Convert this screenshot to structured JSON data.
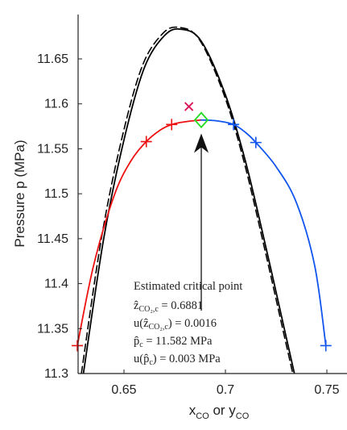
{
  "chart_data": {
    "type": "line",
    "title": "",
    "xlabel": {
      "main1": "x",
      "sub1": "CO",
      "mid": " or y",
      "sub2": "CO"
    },
    "ylabel": "Pressure p (MPa)",
    "xlim": [
      0.625,
      0.755
    ],
    "ylim": [
      11.3,
      11.69
    ],
    "x_ticks": [
      0.65,
      0.7,
      0.75
    ],
    "x_tick_labels": [
      "0.65",
      "0.7",
      "0.75"
    ],
    "y_ticks": [
      11.3,
      11.35,
      11.4,
      11.45,
      11.5,
      11.55,
      11.6,
      11.65
    ],
    "y_tick_labels": [
      "11.3",
      "11.35",
      "11.4",
      "11.45",
      "11.5",
      "11.55",
      "11.6",
      "11.65"
    ],
    "grid": false,
    "legend": "none",
    "series": [
      {
        "color": "#000000",
        "style": "solid",
        "x": [
          0.63,
          0.64,
          0.65,
          0.66,
          0.67,
          0.678,
          0.688,
          0.7,
          0.71,
          0.72,
          0.73,
          0.737
        ],
        "y": [
          11.3,
          11.45,
          11.56,
          11.64,
          11.676,
          11.683,
          11.67,
          11.61,
          11.535,
          11.44,
          11.34,
          11.27
        ]
      },
      {
        "color": "#000000",
        "style": "dashed",
        "x": [
          0.629,
          0.639,
          0.649,
          0.659,
          0.669,
          0.677,
          0.687,
          0.699,
          0.709,
          0.719,
          0.729,
          0.736
        ],
        "y": [
          11.3,
          11.452,
          11.562,
          11.642,
          11.678,
          11.685,
          11.672,
          11.612,
          11.537,
          11.442,
          11.342,
          11.272
        ]
      },
      {
        "color": "#ee1111",
        "style": "solid",
        "x": [
          0.627,
          0.635,
          0.645,
          0.653,
          0.661,
          0.668,
          0.6735,
          0.68,
          0.6881
        ],
        "y": [
          11.331,
          11.42,
          11.497,
          11.535,
          11.558,
          11.571,
          11.577,
          11.58,
          11.582
        ]
      },
      {
        "color": "#1155ee",
        "style": "solid",
        "x": [
          0.6881,
          0.696,
          0.704,
          0.71,
          0.715,
          0.725,
          0.735,
          0.744,
          0.7495
        ],
        "y": [
          11.582,
          11.581,
          11.577,
          11.568,
          11.557,
          11.53,
          11.49,
          11.42,
          11.331
        ]
      }
    ],
    "markers": [
      {
        "kind": "plus",
        "color": "#ee1111",
        "x": 0.627,
        "y": 11.331
      },
      {
        "kind": "plus",
        "color": "#ee1111",
        "x": 0.661,
        "y": 11.558
      },
      {
        "kind": "plus",
        "color": "#ee1111",
        "x": 0.6735,
        "y": 11.577
      },
      {
        "kind": "plus",
        "color": "#1155ee",
        "x": 0.704,
        "y": 11.577
      },
      {
        "kind": "plus",
        "color": "#1155ee",
        "x": 0.715,
        "y": 11.557
      },
      {
        "kind": "plus",
        "color": "#1155ee",
        "x": 0.7495,
        "y": 11.331
      },
      {
        "kind": "cross",
        "color": "#dd1155",
        "x": 0.682,
        "y": 11.597
      },
      {
        "kind": "diamond",
        "color": "#22dd22",
        "x": 0.6881,
        "y": 11.582
      }
    ],
    "arrow": {
      "from": [
        0.6881,
        11.37
      ],
      "to": [
        0.6881,
        11.567
      ]
    },
    "annotation": {
      "title": "Estimated critical point",
      "line1": {
        "pre": "ẑ",
        "sub": "CO₂,c",
        "post": " = 0.6881"
      },
      "line2": {
        "pre": "u(ẑ",
        "sub": "CO₂,c",
        "post": ") = 0.0016"
      },
      "line3": {
        "pre": "p̂",
        "sub": "c",
        "post": " = 11.582 MPa"
      },
      "line4": {
        "pre": "u(p̂",
        "sub": "c",
        "post": ") = 0.003 MPa"
      }
    }
  }
}
